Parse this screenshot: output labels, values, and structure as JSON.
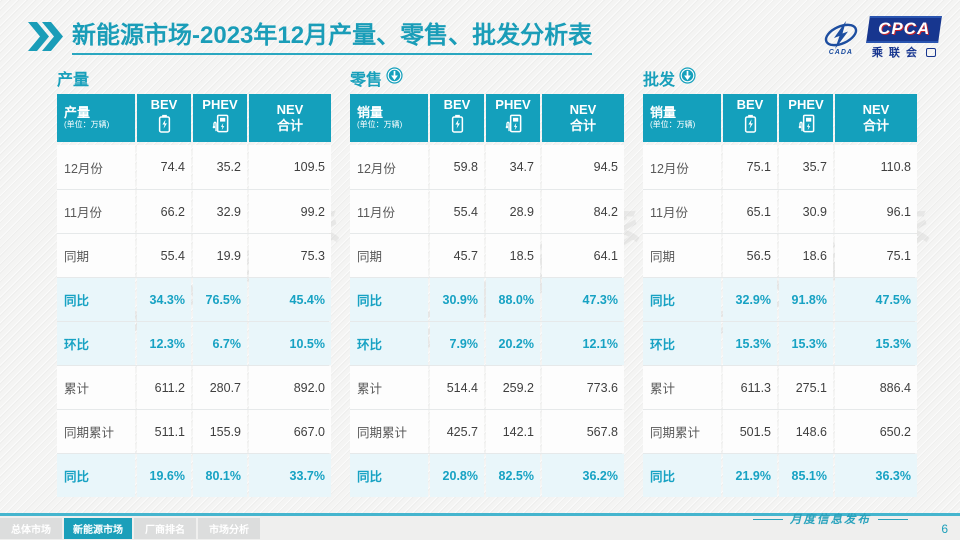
{
  "title": {
    "highlight": "新能源市场",
    "rest": "-2023年12月产量、零售、批发分析表"
  },
  "logo": {
    "badge": "CPCA",
    "org": "乘联会",
    "swoosh_text": "CADA"
  },
  "watermark": "CPCA 乘联会",
  "columns": {
    "unit": "(单位：万辆)",
    "bev": "BEV",
    "phev": "PHEV",
    "nev_line1": "NEV",
    "nev_line2": "合计"
  },
  "sections": [
    {
      "title": "产量",
      "arrow": false,
      "row_header": "产量",
      "rows": [
        {
          "label": "12月份",
          "values": [
            "74.4",
            "35.2",
            "109.5"
          ],
          "highlight": false
        },
        {
          "label": "11月份",
          "values": [
            "66.2",
            "32.9",
            "99.2"
          ],
          "highlight": false
        },
        {
          "label": "同期",
          "values": [
            "55.4",
            "19.9",
            "75.3"
          ],
          "highlight": false
        },
        {
          "label": "同比",
          "values": [
            "34.3%",
            "76.5%",
            "45.4%"
          ],
          "highlight": true
        },
        {
          "label": "环比",
          "values": [
            "12.3%",
            "6.7%",
            "10.5%"
          ],
          "highlight": true
        },
        {
          "label": "累计",
          "values": [
            "611.2",
            "280.7",
            "892.0"
          ],
          "highlight": false
        },
        {
          "label": "同期累计",
          "values": [
            "511.1",
            "155.9",
            "667.0"
          ],
          "highlight": false
        },
        {
          "label": "同比",
          "values": [
            "19.6%",
            "80.1%",
            "33.7%"
          ],
          "highlight": true
        }
      ]
    },
    {
      "title": "零售",
      "arrow": true,
      "row_header": "销量",
      "rows": [
        {
          "label": "12月份",
          "values": [
            "59.8",
            "34.7",
            "94.5"
          ],
          "highlight": false
        },
        {
          "label": "11月份",
          "values": [
            "55.4",
            "28.9",
            "84.2"
          ],
          "highlight": false
        },
        {
          "label": "同期",
          "values": [
            "45.7",
            "18.5",
            "64.1"
          ],
          "highlight": false
        },
        {
          "label": "同比",
          "values": [
            "30.9%",
            "88.0%",
            "47.3%"
          ],
          "highlight": true
        },
        {
          "label": "环比",
          "values": [
            "7.9%",
            "20.2%",
            "12.1%"
          ],
          "highlight": true
        },
        {
          "label": "累计",
          "values": [
            "514.4",
            "259.2",
            "773.6"
          ],
          "highlight": false
        },
        {
          "label": "同期累计",
          "values": [
            "425.7",
            "142.1",
            "567.8"
          ],
          "highlight": false
        },
        {
          "label": "同比",
          "values": [
            "20.8%",
            "82.5%",
            "36.2%"
          ],
          "highlight": true
        }
      ]
    },
    {
      "title": "批发",
      "arrow": true,
      "row_header": "销量",
      "rows": [
        {
          "label": "12月份",
          "values": [
            "75.1",
            "35.7",
            "110.8"
          ],
          "highlight": false
        },
        {
          "label": "11月份",
          "values": [
            "65.1",
            "30.9",
            "96.1"
          ],
          "highlight": false
        },
        {
          "label": "同期",
          "values": [
            "56.5",
            "18.6",
            "75.1"
          ],
          "highlight": false
        },
        {
          "label": "同比",
          "values": [
            "32.9%",
            "91.8%",
            "47.5%"
          ],
          "highlight": true
        },
        {
          "label": "环比",
          "values": [
            "15.3%",
            "15.3%",
            "15.3%"
          ],
          "highlight": true
        },
        {
          "label": "累计",
          "values": [
            "611.3",
            "275.1",
            "886.4"
          ],
          "highlight": false
        },
        {
          "label": "同期累计",
          "values": [
            "501.5",
            "148.6",
            "650.2"
          ],
          "highlight": false
        },
        {
          "label": "同比",
          "values": [
            "21.9%",
            "85.1%",
            "36.3%"
          ],
          "highlight": true
        }
      ]
    }
  ],
  "footer": {
    "tabs": [
      {
        "label": "总体市场"
      },
      {
        "label": "新能源市场"
      },
      {
        "label": "厂商排名"
      },
      {
        "label": "市场分析"
      }
    ],
    "active_tab": "新能源市场",
    "note": "月度信息发布",
    "page": "6"
  },
  "colors": {
    "accent": "#14a0bc",
    "title": "#1a9db8",
    "highlight_row_bg": "#e9f6fa",
    "logo_blue": "#17368f",
    "footer_line": "#45b5ce"
  }
}
